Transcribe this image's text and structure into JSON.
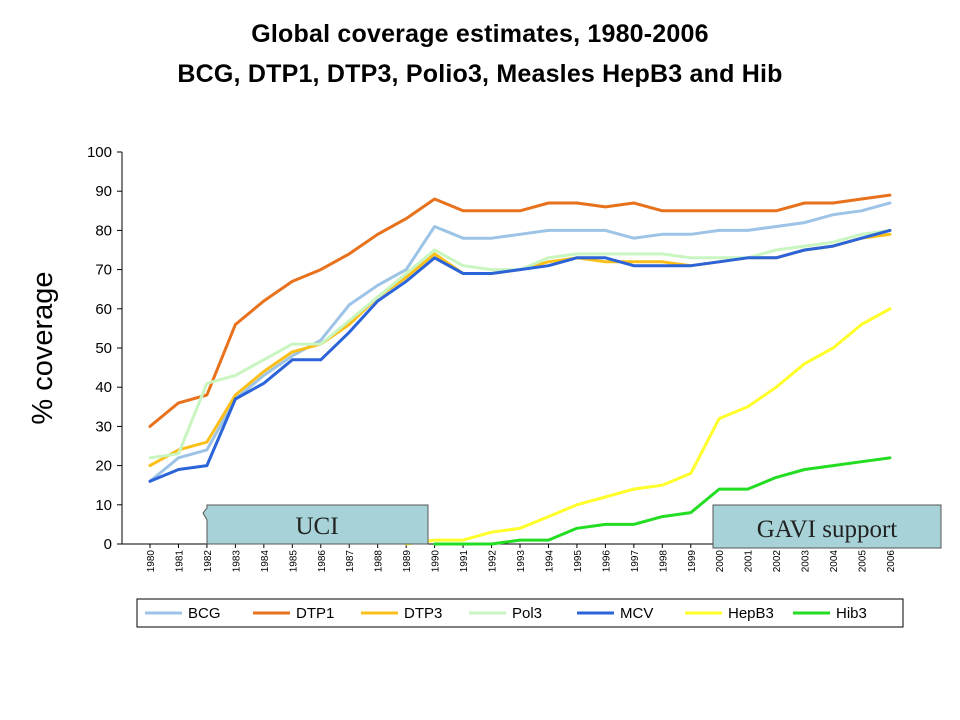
{
  "title_line1": "Global coverage estimates, 1980-2006",
  "title_line2": "BCG, DTP1, DTP3, Polio3, Measles HepB3 and Hib",
  "chart_data": {
    "type": "line",
    "ylabel": "% coverage",
    "ylim": [
      0,
      100
    ],
    "yticks": [
      0,
      10,
      20,
      30,
      40,
      50,
      60,
      70,
      80,
      90,
      100
    ],
    "x": [
      "1980",
      "1981",
      "1982",
      "1983",
      "1984",
      "1985",
      "1986",
      "1987",
      "1988",
      "1989",
      "1990",
      "1991",
      "1992",
      "1993",
      "1994",
      "1995",
      "1996",
      "1997",
      "1998",
      "1999",
      "2000",
      "2001",
      "2002",
      "2003",
      "2004",
      "2005",
      "2006"
    ],
    "legend_position": "bottom",
    "series": [
      {
        "name": "BCG",
        "color": "#9dc3e6",
        "values": [
          16,
          22,
          24,
          37,
          43,
          48,
          52,
          61,
          66,
          70,
          81,
          78,
          78,
          79,
          80,
          80,
          80,
          78,
          79,
          79,
          80,
          80,
          81,
          82,
          84,
          85,
          87
        ]
      },
      {
        "name": "DTP1",
        "color": "#e8711b",
        "values": [
          30,
          36,
          38,
          56,
          62,
          67,
          70,
          74,
          79,
          83,
          88,
          85,
          85,
          85,
          87,
          87,
          86,
          87,
          85,
          85,
          85,
          85,
          85,
          87,
          87,
          88,
          89
        ]
      },
      {
        "name": "DTP3",
        "color": "#fbbf1a",
        "values": [
          20,
          24,
          26,
          38,
          44,
          49,
          51,
          56,
          63,
          68,
          74,
          69,
          69,
          70,
          72,
          73,
          72,
          72,
          72,
          71,
          72,
          73,
          73,
          75,
          76,
          78,
          79
        ]
      },
      {
        "name": "Pol3",
        "color": "#c8f5c0",
        "values": [
          22,
          23,
          41,
          43,
          47,
          51,
          51,
          57,
          63,
          69,
          75,
          71,
          70,
          70,
          73,
          74,
          74,
          74,
          74,
          73,
          73,
          73,
          75,
          76,
          77,
          79,
          80
        ]
      },
      {
        "name": "MCV",
        "color": "#2b63d9",
        "values": [
          16,
          19,
          20,
          37,
          41,
          47,
          47,
          54,
          62,
          67,
          73,
          69,
          69,
          70,
          71,
          73,
          73,
          71,
          71,
          71,
          72,
          73,
          73,
          75,
          76,
          78,
          80
        ]
      },
      {
        "name": "HepB3",
        "color": "#ffff2a",
        "values": [
          null,
          null,
          null,
          null,
          null,
          null,
          null,
          null,
          null,
          0,
          1,
          1,
          3,
          4,
          7,
          10,
          12,
          14,
          15,
          18,
          32,
          35,
          40,
          46,
          50,
          56,
          60
        ]
      },
      {
        "name": "Hib3",
        "color": "#22dd22",
        "values": [
          null,
          null,
          null,
          null,
          null,
          null,
          null,
          null,
          null,
          null,
          0,
          0,
          0,
          1,
          1,
          4,
          5,
          5,
          7,
          8,
          14,
          14,
          17,
          19,
          20,
          21,
          22
        ]
      }
    ],
    "annotations": [
      "UCI",
      "GAVI support"
    ]
  }
}
